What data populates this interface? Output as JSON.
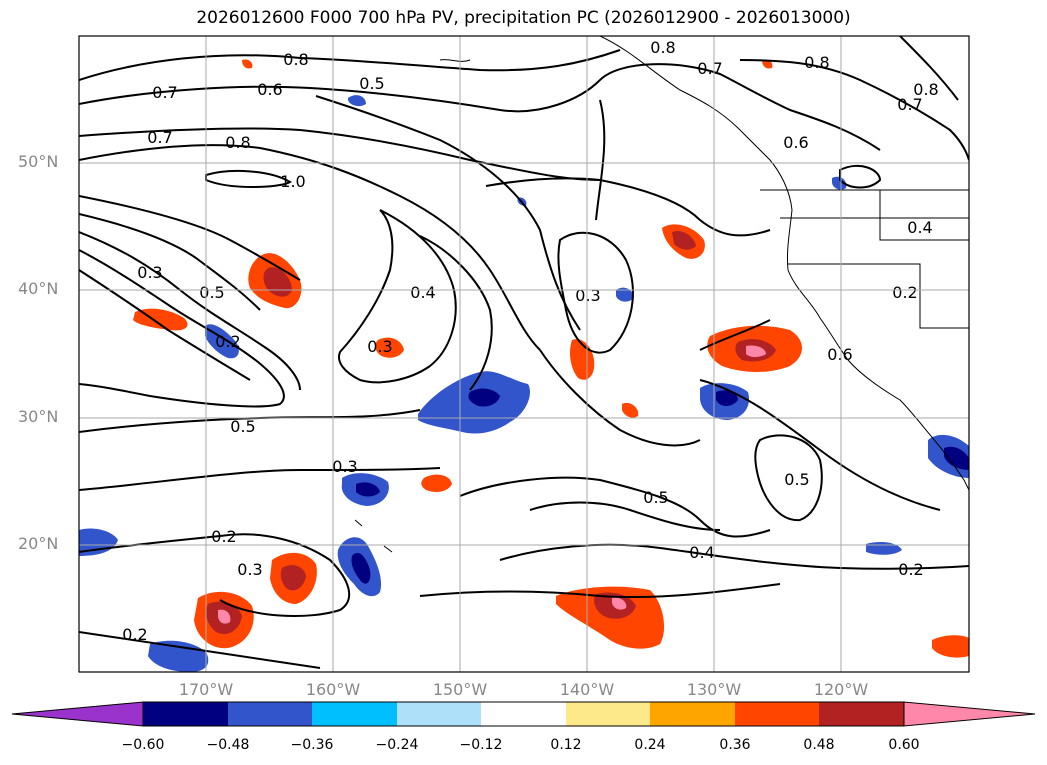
{
  "title": "2026012600 F000 700 hPa PV, precipitation PC (2026012900 - 2026013000)",
  "map": {
    "projection": "lat-lon",
    "lon_range_deg": [
      -180,
      -110
    ],
    "lat_range_deg": [
      10,
      60
    ],
    "latitude_labels": [
      "50°N",
      "40°N",
      "30°N",
      "20°N"
    ],
    "longitude_labels": [
      "170°W",
      "160°W",
      "150°W",
      "140°W",
      "130°W",
      "120°W"
    ],
    "pv_contour_labels": [
      "0.8",
      "0.7",
      "0.6",
      "0.5",
      "0.7",
      "0.8",
      "1.0",
      "0.3",
      "0.5",
      "0.2",
      "0.4",
      "0.3",
      "0.3",
      "0.5",
      "0.3",
      "0.2",
      "0.3",
      "0.2",
      "0.8",
      "0.7",
      "0.8",
      "0.6",
      "0.7",
      "0.8",
      "0.4",
      "0.2",
      "0.6",
      "0.5",
      "0.5",
      "0.4",
      "0.2"
    ]
  },
  "colorbar": {
    "tick_labels": [
      "−0.60",
      "−0.48",
      "−0.36",
      "−0.24",
      "−0.12",
      "0.12",
      "0.24",
      "0.36",
      "0.48",
      "0.60"
    ],
    "colors": [
      "#9933cc",
      "#000080",
      "#3355cc",
      "#00bfff",
      "#aee0fa",
      "#ffffff",
      "#fde98a",
      "#ffa500",
      "#ff4500",
      "#b22222",
      "#ff88aa"
    ]
  },
  "palette": {
    "contour": "#000000",
    "grid": "#aaaaaa",
    "coast": "#000000"
  }
}
